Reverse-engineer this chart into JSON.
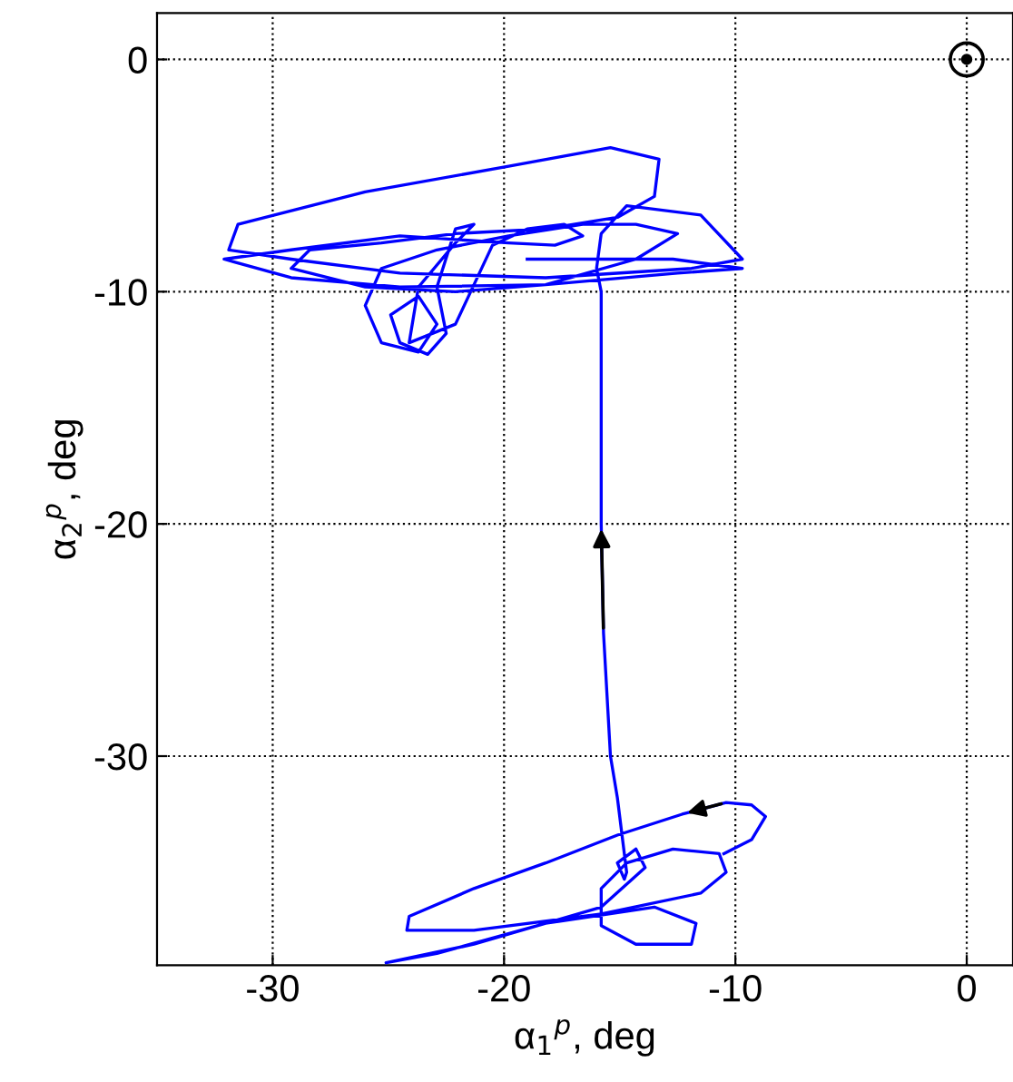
{
  "chart_data": {
    "type": "line",
    "xlabel": "α$_{1}$$^{p}$, deg",
    "ylabel": "α$_{2}$$^{p}$, deg",
    "xlim": [
      -35,
      2
    ],
    "ylim": [
      -39,
      2
    ],
    "xticks": [
      -30,
      -20,
      -10,
      0
    ],
    "yticks": [
      -30,
      -20,
      -10,
      0
    ],
    "grid": true,
    "series": [
      {
        "color": "#0000ff",
        "marker": "none",
        "x": [
          -10.5,
          -9.3,
          -8.7,
          -9.3,
          -10.4,
          -12.3,
          -15.1,
          -18.2,
          -21.3,
          -24.1,
          -24.2,
          -21.3,
          -15.8,
          -11.5,
          -10.4,
          -10.7,
          -12.7,
          -14.7,
          -15.8,
          -15.8,
          -14.3,
          -11.9,
          -11.7,
          -13.5,
          -18.2,
          -22.9,
          -25.1,
          -21.3,
          -15.8,
          -13.9,
          -14.3,
          -15.1,
          -14.8,
          -14.7,
          -15.1,
          -15.4,
          -15.7,
          -15.8,
          -15.8,
          -15.8,
          -16.0,
          -15.8,
          -14.7,
          -11.5,
          -9.7,
          -11.9,
          -18.2,
          -24.5,
          -29.2,
          -31.9,
          -31.5,
          -26.0,
          -19.8,
          -15.4,
          -13.3,
          -13.5,
          -15.1,
          -18.2,
          -22.1,
          -25.3,
          -28.4,
          -29.2,
          -26.0,
          -22.1,
          -18.2,
          -14.3,
          -12.5,
          -14.3,
          -16.6,
          -19.8,
          -22.9,
          -25.3,
          -26.0,
          -25.3,
          -23.7,
          -22.9,
          -23.7,
          -24.9,
          -24.5,
          -23.3,
          -22.5,
          -22.9,
          -22.1,
          -21.3,
          -22.1,
          -23.7,
          -24.1,
          -22.1,
          -20.5,
          -19.0,
          -17.4,
          -16.6,
          -17.8,
          -19.8,
          -24.5,
          -29.2,
          -32.1,
          -29.2,
          -24.5,
          -18.2,
          -12.5,
          -9.7,
          -12.7,
          -19.0
        ],
        "values": [
          -34.2,
          -33.6,
          -32.6,
          -32.1,
          -32.0,
          -32.5,
          -33.4,
          -34.6,
          -35.7,
          -36.9,
          -37.5,
          -37.5,
          -36.8,
          -35.9,
          -35.0,
          -34.2,
          -34.0,
          -34.6,
          -35.7,
          -37.3,
          -38.1,
          -38.1,
          -37.2,
          -36.5,
          -37.2,
          -38.5,
          -38.9,
          -38.1,
          -36.5,
          -34.8,
          -34.0,
          -34.6,
          -35.3,
          -35.0,
          -31.8,
          -30.0,
          -24.7,
          -20.0,
          -14.5,
          -10.0,
          -9.0,
          -7.5,
          -6.3,
          -6.7,
          -8.6,
          -9.0,
          -9.4,
          -9.2,
          -8.6,
          -8.2,
          -7.1,
          -5.7,
          -4.6,
          -3.8,
          -4.3,
          -5.9,
          -6.8,
          -7.3,
          -7.5,
          -7.9,
          -8.2,
          -9.0,
          -9.8,
          -10.0,
          -9.7,
          -8.6,
          -7.5,
          -7.1,
          -7.1,
          -7.6,
          -8.2,
          -9.0,
          -10.6,
          -12.2,
          -12.6,
          -11.4,
          -10.2,
          -11.0,
          -12.2,
          -12.7,
          -11.8,
          -9.8,
          -7.3,
          -7.1,
          -7.9,
          -9.8,
          -12.2,
          -11.4,
          -8.0,
          -7.3,
          -7.1,
          -7.6,
          -8.0,
          -7.9,
          -7.6,
          -8.2,
          -8.6,
          -9.4,
          -9.8,
          -9.7,
          -9.2,
          -9.0,
          -8.6,
          -8.6
        ]
      },
      {
        "type": "scatter",
        "color": "#000000",
        "marker": "circle",
        "x": [
          0
        ],
        "values": [
          0
        ]
      }
    ]
  }
}
